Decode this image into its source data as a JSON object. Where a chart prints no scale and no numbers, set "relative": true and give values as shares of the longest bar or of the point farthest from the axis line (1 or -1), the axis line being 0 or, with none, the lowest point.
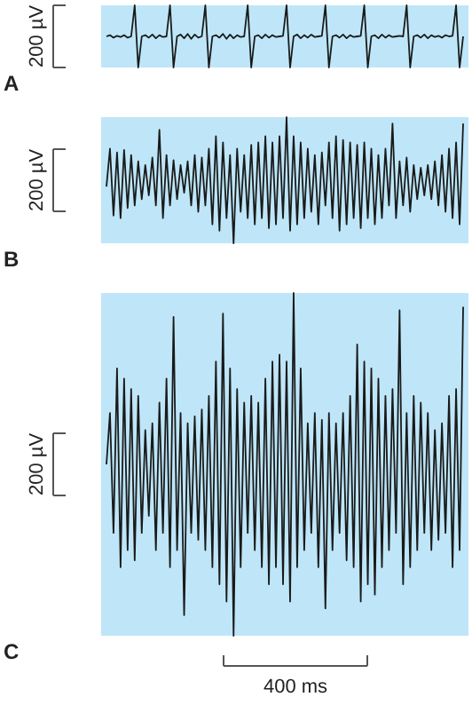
{
  "chart_data": [
    {
      "type": "line",
      "title": "A",
      "relative": true,
      "annotations": [
        "200 µV"
      ],
      "categories": [
        null,
        null,
        null,
        null,
        null,
        null,
        null,
        null,
        null,
        null,
        null,
        null,
        null,
        null,
        null,
        null,
        null,
        null,
        null,
        null,
        null,
        null,
        null,
        null,
        null,
        null,
        null,
        null,
        null,
        null,
        null,
        null,
        null,
        null,
        null,
        null,
        null,
        null,
        null,
        null,
        null,
        null,
        null,
        null,
        null,
        null,
        null,
        null,
        null,
        null,
        null,
        null,
        null,
        null,
        null,
        null,
        null,
        null,
        null,
        null,
        null,
        null,
        null,
        null,
        null,
        null,
        null,
        null,
        null,
        null,
        null,
        null,
        null,
        null,
        null,
        null,
        null,
        null,
        null,
        null,
        null,
        null,
        null,
        null,
        null,
        null,
        null,
        null,
        null,
        null,
        null,
        null,
        null,
        null,
        null,
        null,
        null,
        null,
        null,
        null,
        null,
        null
      ],
      "series": [
        {
          "color": "#1a1a1a",
          "values": [
            0.5,
            0.52,
            0.48,
            0.51,
            0.49,
            0.52,
            0.48,
            0.5,
            1,
            0,
            0.5,
            0.52,
            0.48,
            0.53,
            0.47,
            0.52,
            0.49,
            0.5,
            1,
            0,
            0.5,
            0.53,
            0.47,
            0.54,
            0.46,
            0.53,
            0.48,
            0.5,
            1,
            0,
            0.5,
            0.52,
            0.48,
            0.54,
            0.46,
            0.53,
            0.47,
            0.52,
            0.49,
            0.5,
            1,
            0,
            0.5,
            0.52,
            0.47,
            0.53,
            0.48,
            0.52,
            0.49,
            0.5,
            0.51,
            1,
            0,
            0.5,
            0.53,
            0.47,
            0.52,
            0.48,
            0.53,
            0.49,
            0.5,
            0.51,
            1,
            0,
            0.5,
            0.52,
            0.48,
            0.53,
            0.47,
            0.52,
            0.49,
            0.5,
            0.51,
            1,
            0,
            0.5,
            0.52,
            0.47,
            0.53,
            0.48,
            0.52,
            0.49,
            0.5,
            0.51,
            0.5,
            1,
            0,
            0.5,
            0.52,
            0.48,
            0.53,
            0.47,
            0.52,
            0.49,
            0.51,
            0.48,
            0.52,
            0.5,
            0.51,
            1,
            0,
            0.5
          ]
        }
      ]
    },
    {
      "type": "line",
      "title": "B",
      "relative": true,
      "annotations": [
        "200 µV"
      ],
      "categories": [
        null,
        null,
        null,
        null,
        null,
        null,
        null,
        null,
        null,
        null,
        null,
        null,
        null,
        null,
        null,
        null,
        null,
        null,
        null,
        null,
        null,
        null,
        null,
        null,
        null,
        null,
        null,
        null,
        null,
        null,
        null,
        null,
        null,
        null,
        null,
        null,
        null,
        null,
        null,
        null,
        null,
        null,
        null,
        null,
        null,
        null,
        null,
        null,
        null,
        null,
        null,
        null,
        null,
        null,
        null,
        null,
        null,
        null,
        null,
        null,
        null,
        null,
        null,
        null,
        null,
        null,
        null,
        null,
        null,
        null,
        null,
        null,
        null,
        null,
        null,
        null,
        null,
        null,
        null,
        null,
        null,
        null,
        null,
        null,
        null,
        null,
        null,
        null,
        null,
        null,
        null,
        null,
        null,
        null,
        null,
        null,
        null,
        null,
        null,
        null,
        null,
        null
      ],
      "series": [
        {
          "color": "#1a1a1a",
          "values": [
            0.45,
            0.75,
            0.22,
            0.72,
            0.2,
            0.74,
            0.28,
            0.7,
            0.3,
            0.65,
            0.35,
            0.62,
            0.38,
            0.68,
            0.3,
            0.9,
            0.2,
            0.7,
            0.3,
            0.66,
            0.35,
            0.62,
            0.4,
            0.65,
            0.3,
            0.7,
            0.25,
            0.68,
            0.3,
            0.75,
            0.15,
            0.85,
            0.1,
            0.8,
            0.2,
            0.7,
            0.0,
            0.75,
            0.25,
            0.7,
            0.2,
            0.78,
            0.15,
            0.8,
            0.2,
            0.85,
            0.12,
            0.8,
            0.15,
            0.85,
            0.2,
            1.0,
            0.1,
            0.85,
            0.15,
            0.8,
            0.2,
            0.75,
            0.25,
            0.7,
            0.15,
            0.72,
            0.3,
            0.8,
            0.2,
            0.85,
            0.1,
            0.82,
            0.15,
            0.8,
            0.2,
            0.78,
            0.12,
            0.8,
            0.2,
            0.75,
            0.15,
            0.7,
            0.2,
            0.75,
            0.3,
            0.95,
            0.2,
            0.65,
            0.3,
            0.68,
            0.25,
            0.62,
            0.35,
            0.6,
            0.38,
            0.62,
            0.35,
            0.65,
            0.3,
            0.7,
            0.25,
            0.75,
            0.2,
            0.8,
            0.15,
            0.95
          ]
        }
      ]
    },
    {
      "type": "line",
      "title": "C",
      "relative": true,
      "annotations": [
        "200 µV",
        "400 ms"
      ],
      "categories": [
        null,
        null,
        null,
        null,
        null,
        null,
        null,
        null,
        null,
        null,
        null,
        null,
        null,
        null,
        null,
        null,
        null,
        null,
        null,
        null,
        null,
        null,
        null,
        null,
        null,
        null,
        null,
        null,
        null,
        null,
        null,
        null,
        null,
        null,
        null,
        null,
        null,
        null,
        null,
        null,
        null,
        null,
        null,
        null,
        null,
        null,
        null,
        null,
        null,
        null,
        null,
        null,
        null,
        null,
        null,
        null,
        null,
        null,
        null,
        null,
        null,
        null,
        null,
        null,
        null,
        null,
        null,
        null,
        null,
        null,
        null,
        null,
        null,
        null,
        null,
        null,
        null,
        null,
        null,
        null,
        null,
        null,
        null,
        null,
        null,
        null,
        null,
        null,
        null,
        null,
        null,
        null,
        null,
        null,
        null,
        null,
        null,
        null,
        null,
        null,
        null,
        null
      ],
      "series": [
        {
          "color": "#1a1a1a",
          "values": [
            0.5,
            0.65,
            0.3,
            0.78,
            0.2,
            0.75,
            0.25,
            0.72,
            0.22,
            0.7,
            0.3,
            0.6,
            0.35,
            0.62,
            0.25,
            0.68,
            0.3,
            0.75,
            0.2,
            0.93,
            0.25,
            0.65,
            0.06,
            0.62,
            0.3,
            0.64,
            0.28,
            0.66,
            0.25,
            0.7,
            0.2,
            0.8,
            0.15,
            0.94,
            0.1,
            0.78,
            0.0,
            0.72,
            0.2,
            0.68,
            0.3,
            0.7,
            0.25,
            0.68,
            0.2,
            0.75,
            0.15,
            0.8,
            0.2,
            0.82,
            0.15,
            0.8,
            0.1,
            1.0,
            0.2,
            0.78,
            0.25,
            0.62,
            0.3,
            0.65,
            0.2,
            0.63,
            0.08,
            0.65,
            0.25,
            0.62,
            0.3,
            0.65,
            0.22,
            0.7,
            0.2,
            0.85,
            0.1,
            0.8,
            0.15,
            0.78,
            0.12,
            0.75,
            0.2,
            0.7,
            0.25,
            0.72,
            0.3,
            0.95,
            0.15,
            0.65,
            0.2,
            0.7,
            0.25,
            0.68,
            0.3,
            0.65,
            0.25,
            0.6,
            0.28,
            0.62,
            0.3,
            0.7,
            0.2,
            0.72,
            0.25,
            0.96
          ]
        }
      ]
    }
  ]
}
